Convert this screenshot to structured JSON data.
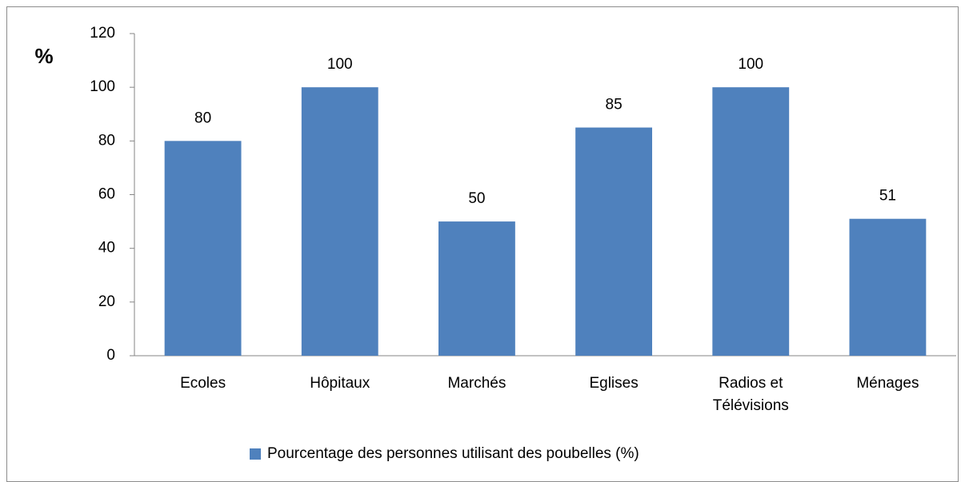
{
  "chart_data": {
    "type": "bar",
    "y_label": "%",
    "categories": [
      "Ecoles",
      "Hôpitaux",
      "Marchés",
      "Eglises",
      "Radios et Télévisions",
      "Ménages"
    ],
    "series": [
      {
        "name": "Pourcentage des personnes utilisant des poubelles (%)",
        "color": "#4f81bd",
        "values": [
          80,
          100,
          50,
          85,
          100,
          51
        ]
      }
    ],
    "ylim": [
      0,
      120
    ],
    "yticks": [
      0,
      20,
      40,
      60,
      80,
      100,
      120
    ],
    "grid": false,
    "legend": "bottom"
  }
}
